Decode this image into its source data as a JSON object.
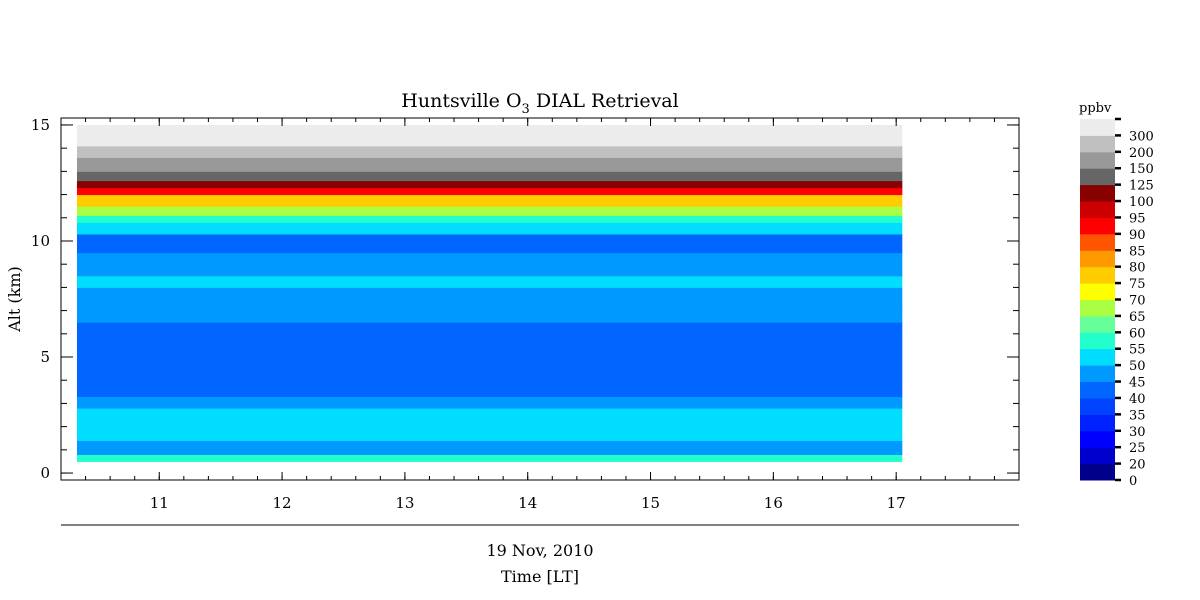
{
  "chart_data": {
    "type": "heatmap",
    "title_main": "Huntsville O",
    "title_sub": "3",
    "title_rest": " DIAL Retrieval",
    "ylabel": "Alt (km)",
    "xlabel_date": "19 Nov, 2010",
    "xlabel": "Time [LT]",
    "xlim": [
      10.2,
      18.0
    ],
    "ylim": [
      -0.3,
      15.3
    ],
    "data_x_range": [
      10.33,
      17.05
    ],
    "data_y_range": [
      0.5,
      15.0
    ],
    "x_ticks": [
      "11",
      "12",
      "13",
      "14",
      "15",
      "16",
      "17"
    ],
    "y_ticks": [
      "0",
      "5",
      "10",
      "15"
    ],
    "colorbar": {
      "unit": "ppbv",
      "levels": [
        "0",
        "20",
        "25",
        "30",
        "35",
        "40",
        "45",
        "50",
        "55",
        "60",
        "65",
        "70",
        "75",
        "80",
        "85",
        "90",
        "95",
        "100",
        "125",
        "150",
        "200",
        "300"
      ],
      "colors": [
        "#00008b",
        "#0000cd",
        "#0000ff",
        "#0022ff",
        "#0044ff",
        "#0066ff",
        "#0099ff",
        "#00ddff",
        "#22ffcc",
        "#66ff99",
        "#aaff44",
        "#ffff00",
        "#ffcc00",
        "#ff9900",
        "#ff5500",
        "#ff0000",
        "#cc0000",
        "#880000",
        "#666666",
        "#999999",
        "#c0c0c0",
        "#ececec"
      ]
    },
    "profile_layers": [
      {
        "from": 0.5,
        "to": 0.8,
        "ppbv": 55
      },
      {
        "from": 0.8,
        "to": 1.4,
        "ppbv": 45
      },
      {
        "from": 1.4,
        "to": 2.8,
        "ppbv": 50
      },
      {
        "from": 2.8,
        "to": 3.3,
        "ppbv": 45
      },
      {
        "from": 3.3,
        "to": 4.5,
        "ppbv": 40
      },
      {
        "from": 4.5,
        "to": 5.5,
        "ppbv": 40
      },
      {
        "from": 5.5,
        "to": 6.5,
        "ppbv": 40
      },
      {
        "from": 6.5,
        "to": 7.2,
        "ppbv": 45
      },
      {
        "from": 7.2,
        "to": 8.0,
        "ppbv": 45
      },
      {
        "from": 8.0,
        "to": 8.5,
        "ppbv": 50
      },
      {
        "from": 8.5,
        "to": 9.5,
        "ppbv": 45
      },
      {
        "from": 9.5,
        "to": 10.3,
        "ppbv": 40
      },
      {
        "from": 10.3,
        "to": 10.8,
        "ppbv": 50
      },
      {
        "from": 10.8,
        "to": 11.1,
        "ppbv": 55
      },
      {
        "from": 11.1,
        "to": 11.5,
        "ppbv": 65
      },
      {
        "from": 11.5,
        "to": 12.0,
        "ppbv": 75
      },
      {
        "from": 12.0,
        "to": 12.3,
        "ppbv": 90
      },
      {
        "from": 12.3,
        "to": 12.6,
        "ppbv": 100
      },
      {
        "from": 12.6,
        "to": 13.0,
        "ppbv": 125
      },
      {
        "from": 13.0,
        "to": 13.6,
        "ppbv": 150
      },
      {
        "from": 13.6,
        "to": 14.1,
        "ppbv": 200
      },
      {
        "from": 14.1,
        "to": 15.0,
        "ppbv": 300
      }
    ]
  }
}
